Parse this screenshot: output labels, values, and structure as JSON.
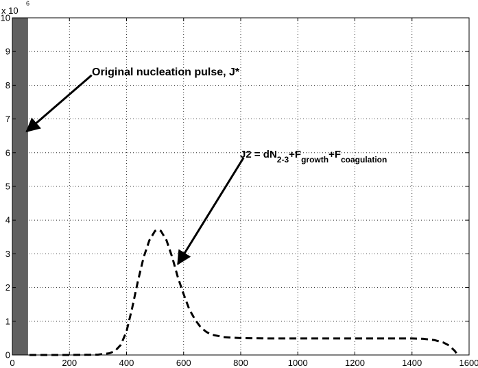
{
  "chart_data": {
    "type": "line",
    "title": "",
    "xlabel": "",
    "ylabel": "",
    "xlim": [
      0,
      1600
    ],
    "ylim": [
      0,
      10
    ],
    "y_multiplier_label": "x 10",
    "y_multiplier_exponent": "6",
    "grid": true,
    "x_ticks": [
      0,
      200,
      400,
      600,
      800,
      1000,
      1200,
      1400,
      1600
    ],
    "y_ticks": [
      0,
      1,
      2,
      3,
      4,
      5,
      6,
      7,
      8,
      9,
      10
    ],
    "bar": {
      "x_start": 0,
      "x_end": 55,
      "value": 10,
      "color": "#606060"
    },
    "series": [
      {
        "style": "dashed",
        "color": "#000000",
        "x": [
          60,
          200,
          300,
          340,
          360,
          380,
          400,
          420,
          440,
          460,
          480,
          500,
          510,
          520,
          540,
          560,
          580,
          600,
          620,
          640,
          660,
          680,
          700,
          740,
          800,
          900,
          1000,
          1100,
          1200,
          1300,
          1400,
          1440,
          1480,
          1510,
          1530,
          1550,
          1560
        ],
        "values": [
          0.0,
          0.0,
          0.01,
          0.05,
          0.12,
          0.3,
          0.7,
          1.4,
          2.2,
          2.9,
          3.4,
          3.68,
          3.72,
          3.68,
          3.4,
          2.9,
          2.3,
          1.8,
          1.35,
          1.05,
          0.82,
          0.68,
          0.6,
          0.53,
          0.5,
          0.49,
          0.49,
          0.49,
          0.49,
          0.49,
          0.49,
          0.48,
          0.44,
          0.37,
          0.28,
          0.12,
          0.0
        ]
      }
    ],
    "annotations": [
      {
        "parts": [
          {
            "text": "Original nucleation pulse, J*",
            "sub": ""
          }
        ],
        "arrow_from": [
          278,
          8.3
        ],
        "arrow_to": [
          50,
          6.63
        ]
      },
      {
        "parts": [
          {
            "text": "J2 = dN",
            "sub": "2-3"
          },
          {
            "text": "+F",
            "sub": "growth"
          },
          {
            "text": "+F",
            "sub": "coagulation"
          }
        ],
        "arrow_from": [
          810,
          5.85
        ],
        "arrow_to": [
          580,
          2.7
        ]
      }
    ]
  }
}
